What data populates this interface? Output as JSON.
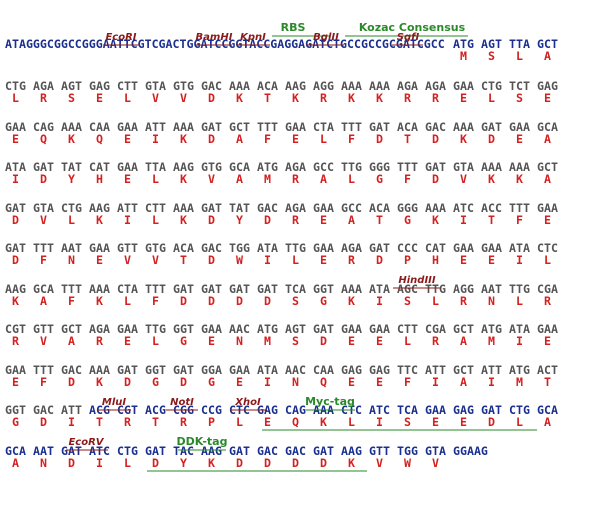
{
  "rows": [
    {
      "prefix": "ATAGGGCGGCCGGGAATTCGTCGACTGGATCCGGTACCGAGGAGATCTGCCGCCGCGATCGCC",
      "codons": [
        "ATG",
        "AGT",
        "TTA",
        "GCT"
      ],
      "amino_acids": [
        "M",
        "S",
        "L",
        "A"
      ]
    },
    {
      "codons": [
        "CTG",
        "AGA",
        "AGT",
        "GAG",
        "CTT",
        "GTA",
        "GTG",
        "GAC",
        "AAA",
        "ACA",
        "AAG",
        "AGG",
        "AAA",
        "AAA",
        "AGA",
        "AGA",
        "GAA",
        "CTG",
        "TCT",
        "GAG"
      ],
      "amino_acids": [
        "L",
        "R",
        "S",
        "E",
        "L",
        "V",
        "V",
        "D",
        "K",
        "T",
        "K",
        "R",
        "K",
        "K",
        "R",
        "R",
        "E",
        "L",
        "S",
        "E"
      ]
    },
    {
      "codons": [
        "GAA",
        "CAG",
        "AAA",
        "CAA",
        "GAA",
        "ATT",
        "AAA",
        "GAT",
        "GCT",
        "TTT",
        "GAA",
        "CTA",
        "TTT",
        "GAT",
        "ACA",
        "GAC",
        "AAA",
        "GAT",
        "GAA",
        "GCA"
      ],
      "amino_acids": [
        "E",
        "Q",
        "K",
        "Q",
        "E",
        "I",
        "K",
        "D",
        "A",
        "F",
        "E",
        "L",
        "F",
        "D",
        "T",
        "D",
        "K",
        "D",
        "E",
        "A"
      ]
    },
    {
      "codons": [
        "ATA",
        "GAT",
        "TAT",
        "CAT",
        "GAA",
        "TTA",
        "AAG",
        "GTG",
        "GCA",
        "ATG",
        "AGA",
        "GCC",
        "TTG",
        "GGG",
        "TTT",
        "GAT",
        "GTA",
        "AAA",
        "AAA",
        "GCT"
      ],
      "amino_acids": [
        "I",
        "D",
        "Y",
        "H",
        "E",
        "L",
        "K",
        "V",
        "A",
        "M",
        "R",
        "A",
        "L",
        "G",
        "F",
        "D",
        "V",
        "K",
        "K",
        "A"
      ]
    },
    {
      "codons": [
        "GAT",
        "GTA",
        "CTG",
        "AAG",
        "ATT",
        "CTT",
        "AAA",
        "GAT",
        "TAT",
        "GAC",
        "AGA",
        "GAA",
        "GCC",
        "ACA",
        "GGG",
        "AAA",
        "ATC",
        "ACC",
        "TTT",
        "GAA"
      ],
      "amino_acids": [
        "D",
        "V",
        "L",
        "K",
        "I",
        "L",
        "K",
        "D",
        "Y",
        "D",
        "R",
        "E",
        "A",
        "T",
        "G",
        "K",
        "I",
        "T",
        "F",
        "E"
      ]
    },
    {
      "codons": [
        "GAT",
        "TTT",
        "AAT",
        "GAA",
        "GTT",
        "GTG",
        "ACA",
        "GAC",
        "TGG",
        "ATA",
        "TTG",
        "GAA",
        "AGA",
        "GAT",
        "CCC",
        "CAT",
        "GAA",
        "GAA",
        "ATA",
        "CTC"
      ],
      "amino_acids": [
        "D",
        "F",
        "N",
        "E",
        "V",
        "V",
        "T",
        "D",
        "W",
        "I",
        "L",
        "E",
        "R",
        "D",
        "P",
        "H",
        "E",
        "E",
        "I",
        "L"
      ]
    },
    {
      "codons": [
        "AAG",
        "GCA",
        "TTT",
        "AAA",
        "CTA",
        "TTT",
        "GAT",
        "GAT",
        "GAT",
        "GAT",
        "TCA",
        "GGT",
        "AAA",
        "ATA",
        "AGC",
        "TTG",
        "AGG",
        "AAT",
        "TTG",
        "CGA"
      ],
      "amino_acids": [
        "K",
        "A",
        "F",
        "K",
        "L",
        "F",
        "D",
        "D",
        "D",
        "D",
        "S",
        "G",
        "K",
        "I",
        "S",
        "L",
        "R",
        "N",
        "L",
        "R"
      ]
    },
    {
      "codons": [
        "CGT",
        "GTT",
        "GCT",
        "AGA",
        "GAA",
        "TTG",
        "GGT",
        "GAA",
        "AAC",
        "ATG",
        "AGT",
        "GAT",
        "GAA",
        "GAA",
        "CTT",
        "CGA",
        "GCT",
        "ATG",
        "ATA",
        "GAA"
      ],
      "amino_acids": [
        "R",
        "V",
        "A",
        "R",
        "E",
        "L",
        "G",
        "E",
        "N",
        "M",
        "S",
        "D",
        "E",
        "E",
        "L",
        "R",
        "A",
        "M",
        "I",
        "E"
      ]
    },
    {
      "codons": [
        "GAA",
        "TTT",
        "GAC",
        "AAA",
        "GAT",
        "GGT",
        "GAT",
        "GGA",
        "GAA",
        "ATA",
        "AAC",
        "CAA",
        "GAG",
        "GAG",
        "TTC",
        "ATT",
        "GCT",
        "ATT",
        "ATG",
        "ACT"
      ],
      "amino_acids": [
        "E",
        "F",
        "D",
        "K",
        "D",
        "G",
        "D",
        "G",
        "E",
        "I",
        "N",
        "Q",
        "E",
        "E",
        "F",
        "I",
        "A",
        "I",
        "M",
        "T"
      ]
    },
    {
      "codons": [
        "GGT",
        "GAC",
        "ATT",
        "ACG",
        "CGT",
        "ACG",
        "CGG",
        "CCG",
        "CTC",
        "GAG",
        "CAG",
        "AAA",
        "CTC",
        "ATC",
        "TCA",
        "GAA",
        "GAG",
        "GAT",
        "CTG",
        "GCA"
      ],
      "amino_acids": [
        "G",
        "D",
        "I",
        "T",
        "R",
        "T",
        "R",
        "P",
        "L",
        "E",
        "Q",
        "K",
        "L",
        "I",
        "S",
        "E",
        "E",
        "D",
        "L",
        "A"
      ]
    },
    {
      "codons": [
        "GCA",
        "AAT",
        "GAT",
        "ATC",
        "CTG",
        "GAT",
        "TAC",
        "AAG",
        "GAT",
        "GAC",
        "GAC",
        "GAT",
        "AAG",
        "GTT",
        "TGG",
        "GTA",
        "GGAAG"
      ],
      "amino_acids": [
        "A",
        "N",
        "D",
        "I",
        "L",
        "D",
        "Y",
        "K",
        "D",
        "D",
        "D",
        "D",
        "K",
        "V",
        "W",
        "V"
      ]
    }
  ],
  "annotations": [
    {
      "label": "RBS"
    },
    {
      "label": "Kozac Consensus"
    },
    {
      "label": "EcoRI"
    },
    {
      "label": "BamHI"
    },
    {
      "label": "KpnI"
    },
    {
      "label": "BglII"
    },
    {
      "label": "SgfI"
    },
    {
      "label": "HindIII"
    },
    {
      "label": "MluI"
    },
    {
      "label": "NotI"
    },
    {
      "label": "XhoI"
    },
    {
      "label": "Myc-tag"
    },
    {
      "label": "EcoRV"
    },
    {
      "label": "DDK-tag"
    }
  ]
}
